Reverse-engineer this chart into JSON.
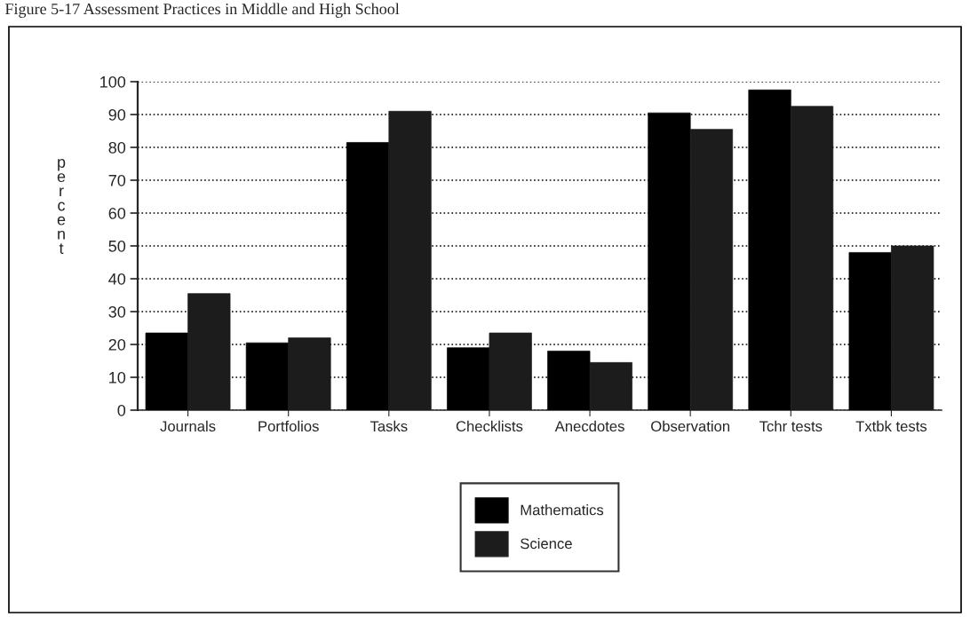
{
  "chart_data": {
    "type": "bar",
    "title": "Figure 5-17 Assessment Practices in Middle and High School",
    "ylabel": "percent",
    "categories": [
      "Journals",
      "Portfolios",
      "Tasks",
      "Checklists",
      "Anecdotes",
      "Observation",
      "Tchr tests",
      "Txtbk tests"
    ],
    "series": [
      {
        "name": "Mathematics",
        "color": "#000000",
        "values": [
          23.5,
          20.5,
          81.5,
          19,
          18,
          90.5,
          97.5,
          48
        ]
      },
      {
        "name": "Science",
        "color": "#1c1c1c",
        "values": [
          35.5,
          22,
          91,
          23.5,
          14.5,
          85.5,
          92.5,
          50
        ]
      }
    ],
    "ylim": [
      0,
      100
    ],
    "yticks": [
      0,
      10,
      20,
      30,
      40,
      50,
      60,
      70,
      80,
      90,
      100
    ],
    "grid": "y",
    "legend": "bottom"
  }
}
